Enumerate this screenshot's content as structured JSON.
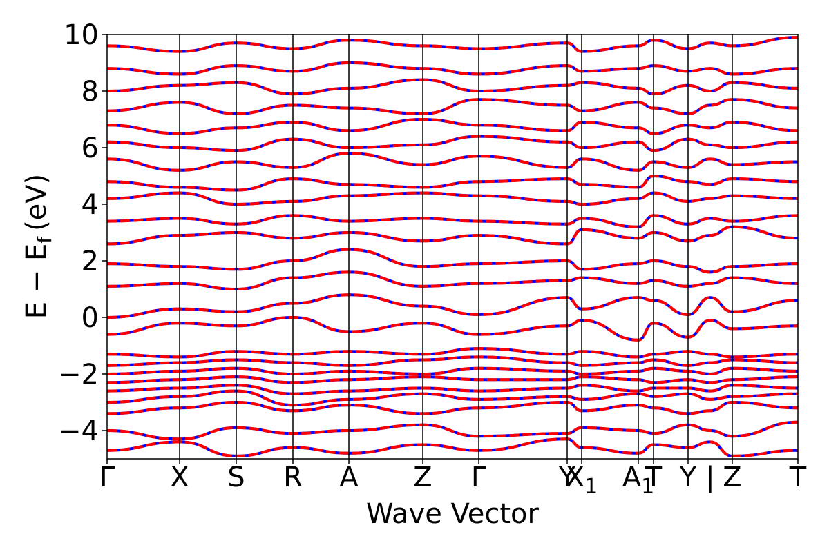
{
  "chart_data": {
    "type": "line",
    "title": "",
    "xlabel": "Wave Vector",
    "ylabel": "E − E",
    "ylabel_subscript": "f",
    "ylabel_unit": "(eV)",
    "ylim": [
      -5,
      10
    ],
    "yticks": [
      -4,
      -2,
      0,
      2,
      4,
      6,
      8,
      10
    ],
    "ytick_labels": [
      "−4",
      "−2",
      "0",
      "2",
      "4",
      "6",
      "8",
      "10"
    ],
    "xlim": [
      0,
      1
    ],
    "kpoints": [
      {
        "label": "Γ",
        "sub": "",
        "x": 0.0
      },
      {
        "label": "X",
        "sub": "",
        "x": 0.105
      },
      {
        "label": "S",
        "sub": "",
        "x": 0.187
      },
      {
        "label": "R",
        "sub": "",
        "x": 0.269
      },
      {
        "label": "A",
        "sub": "",
        "x": 0.35
      },
      {
        "label": "Z",
        "sub": "",
        "x": 0.457
      },
      {
        "label": "Γ",
        "sub": "",
        "x": 0.538
      },
      {
        "label": "Y",
        "sub": "",
        "x": 0.666
      },
      {
        "label": "X",
        "sub": "1",
        "x": 0.687
      },
      {
        "label": "A",
        "sub": "1",
        "x": 0.769
      },
      {
        "label": "T",
        "sub": "",
        "x": 0.791
      },
      {
        "label": "Y",
        "sub": "",
        "x": 0.841
      },
      {
        "label": "|",
        "sub": "",
        "x": 0.873
      },
      {
        "label": "Z",
        "sub": "",
        "x": 0.905
      },
      {
        "label": "T",
        "sub": "",
        "x": 1.0
      }
    ],
    "series": [
      {
        "color": "#0000ff",
        "style": "solid"
      },
      {
        "color": "#ff0000",
        "style": "dashed"
      }
    ],
    "bands": [
      [
        -4.7,
        -4.4,
        -4.9,
        -4.6,
        -4.8,
        -4.5,
        -4.7,
        -4.3,
        -4.6,
        -4.8,
        -4.5,
        -4.6,
        -4.4,
        -4.9,
        -4.7
      ],
      [
        -4.0,
        -4.3,
        -3.9,
        -4.1,
        -4.0,
        -3.8,
        -4.2,
        -4.1,
        -3.9,
        -4.0,
        -4.1,
        -3.8,
        -4.0,
        -4.2,
        -3.7
      ],
      [
        -3.4,
        -3.2,
        -3.0,
        -3.3,
        -3.1,
        -3.4,
        -3.2,
        -3.0,
        -3.3,
        -3.1,
        -3.2,
        -3.4,
        -3.3,
        -3.0,
        -3.2
      ],
      [
        -3.0,
        -2.8,
        -2.6,
        -3.1,
        -2.9,
        -2.7,
        -2.9,
        -2.8,
        -2.9,
        -2.7,
        -2.8,
        -2.7,
        -2.9,
        -2.8,
        -2.7
      ],
      [
        -2.6,
        -2.5,
        -2.4,
        -2.7,
        -2.6,
        -2.5,
        -2.6,
        -2.5,
        -2.4,
        -2.6,
        -2.5,
        -2.5,
        -2.6,
        -2.4,
        -2.5
      ],
      [
        -2.3,
        -2.2,
        -2.1,
        -2.3,
        -2.2,
        -2.1,
        -2.2,
        -2.2,
        -2.1,
        -2.2,
        -2.3,
        -2.2,
        -2.3,
        -2.2,
        -2.1
      ],
      [
        -2.0,
        -1.9,
        -1.8,
        -2.0,
        -1.9,
        -2.0,
        -1.8,
        -1.9,
        -2.0,
        -1.9,
        -1.8,
        -1.9,
        -2.0,
        -1.8,
        -1.9
      ],
      [
        -1.7,
        -1.6,
        -1.5,
        -1.6,
        -1.7,
        -1.5,
        -1.4,
        -1.6,
        -1.7,
        -1.6,
        -1.5,
        -1.7,
        -1.6,
        -1.5,
        -1.6
      ],
      [
        -1.3,
        -1.4,
        -1.2,
        -1.3,
        -1.2,
        -1.3,
        -1.1,
        -1.3,
        -1.2,
        -1.4,
        -1.3,
        -1.2,
        -1.3,
        -1.4,
        -1.3
      ],
      [
        -0.6,
        -0.2,
        -0.3,
        0.0,
        -0.5,
        -0.2,
        -0.6,
        -0.3,
        -0.1,
        -0.8,
        -0.2,
        -0.7,
        -0.1,
        -0.4,
        -0.3
      ],
      [
        0.0,
        0.3,
        0.2,
        0.5,
        0.8,
        0.4,
        0.1,
        0.7,
        0.3,
        0.7,
        0.6,
        0.1,
        0.7,
        0.2,
        0.6
      ],
      [
        1.1,
        1.2,
        1.0,
        1.4,
        1.6,
        1.1,
        1.2,
        1.3,
        1.4,
        1.2,
        1.3,
        1.1,
        1.2,
        1.4,
        1.2
      ],
      [
        1.9,
        1.8,
        1.7,
        2.0,
        2.4,
        1.8,
        1.9,
        2.0,
        1.7,
        1.9,
        2.0,
        1.8,
        1.6,
        1.8,
        1.9
      ],
      [
        2.6,
        2.9,
        3.0,
        2.8,
        3.0,
        2.7,
        2.9,
        2.6,
        3.1,
        2.8,
        3.0,
        2.7,
        2.9,
        3.2,
        2.8
      ],
      [
        3.4,
        3.5,
        3.3,
        3.6,
        3.4,
        3.5,
        3.4,
        3.3,
        3.5,
        3.2,
        3.6,
        3.3,
        3.5,
        3.4,
        3.6
      ],
      [
        4.2,
        4.4,
        4.0,
        4.1,
        4.3,
        4.4,
        4.3,
        4.1,
        4.0,
        4.2,
        4.4,
        4.1,
        4.2,
        4.3,
        4.2
      ],
      [
        4.8,
        4.6,
        4.5,
        4.9,
        4.7,
        4.6,
        4.8,
        4.9,
        4.7,
        4.6,
        5.0,
        4.8,
        4.7,
        4.9,
        4.8
      ],
      [
        5.6,
        5.2,
        5.5,
        5.3,
        5.8,
        5.4,
        5.7,
        5.3,
        5.6,
        5.2,
        5.5,
        5.3,
        5.6,
        5.4,
        5.5
      ],
      [
        6.2,
        6.0,
        5.9,
        6.3,
        6.0,
        6.1,
        6.4,
        6.2,
        6.0,
        6.2,
        5.9,
        6.3,
        6.1,
        6.0,
        6.2
      ],
      [
        6.8,
        6.5,
        6.7,
        6.9,
        6.6,
        7.0,
        6.8,
        6.6,
        6.9,
        6.7,
        6.5,
        6.8,
        6.7,
        6.9,
        6.6
      ],
      [
        7.3,
        7.6,
        7.2,
        7.5,
        7.4,
        7.2,
        7.7,
        7.5,
        7.3,
        7.6,
        7.4,
        7.2,
        7.5,
        7.7,
        7.4
      ],
      [
        8.0,
        8.2,
        8.3,
        7.9,
        8.1,
        8.4,
        8.0,
        8.2,
        8.3,
        8.1,
        7.9,
        8.2,
        8.0,
        8.3,
        8.1
      ],
      [
        8.8,
        8.6,
        8.9,
        8.7,
        9.0,
        8.8,
        8.6,
        8.9,
        8.7,
        8.8,
        8.9,
        8.7,
        8.8,
        8.6,
        8.8
      ],
      [
        9.6,
        9.4,
        9.7,
        9.5,
        9.8,
        9.6,
        9.5,
        9.7,
        9.4,
        9.6,
        9.8,
        9.5,
        9.7,
        9.6,
        9.9
      ]
    ]
  }
}
